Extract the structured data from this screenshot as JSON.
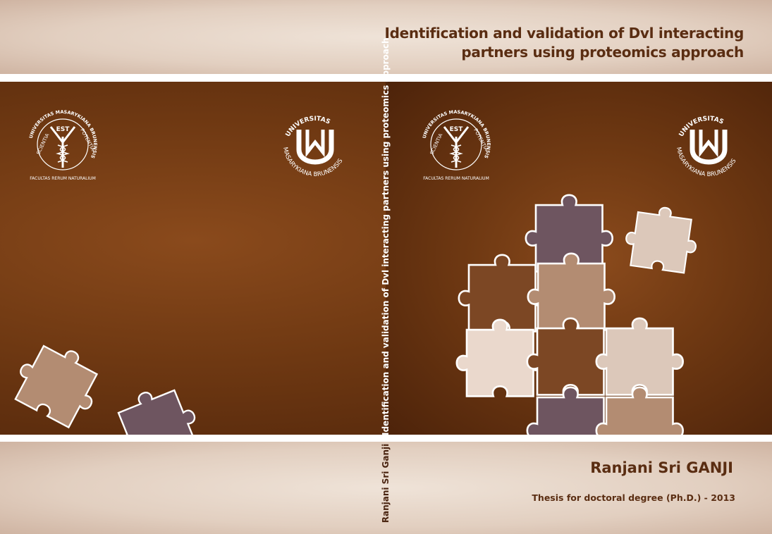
{
  "cover": {
    "title": "Identification and validation of Dvl interacting partners using proteomics approach",
    "title_line1": "Identification and validation of Dvl interacting",
    "title_line2": "partners using proteomics approach",
    "author": "Ranjani Sri GANJI",
    "degree": "Thesis for doctoral degree (Ph.D.) - 2013"
  },
  "spine": {
    "title": "Identification and validation of Dvl interacting partners using proteomics approach",
    "author": "Ranjani Sri Ganji"
  },
  "logos": {
    "faculty_seal": {
      "outer_text": "UNIVERSITAS MASARYKIANA BRUNENSIS",
      "inner_left": "SCIENTIA",
      "inner_top": "EST",
      "inner_right": "POTENTIA",
      "bottom_text": "FACULTAS RERUM NATURALIUM"
    },
    "university_seal": {
      "top_text": "UNIVERSITAS",
      "bottom_text": "MASARYKIANA BRUNENSIS",
      "monogram": "MU"
    }
  },
  "colors": {
    "brown_dark": "#4d230a",
    "brown_mid": "#7a4520",
    "band": "#e2cfc0",
    "text_brown": "#5a2d12",
    "piece_purple": "#6e5560",
    "piece_tan": "#b38c72",
    "piece_light": "#ead8cc",
    "piece_brown": "#7c4724",
    "piece_beige": "#dcc8ba"
  }
}
